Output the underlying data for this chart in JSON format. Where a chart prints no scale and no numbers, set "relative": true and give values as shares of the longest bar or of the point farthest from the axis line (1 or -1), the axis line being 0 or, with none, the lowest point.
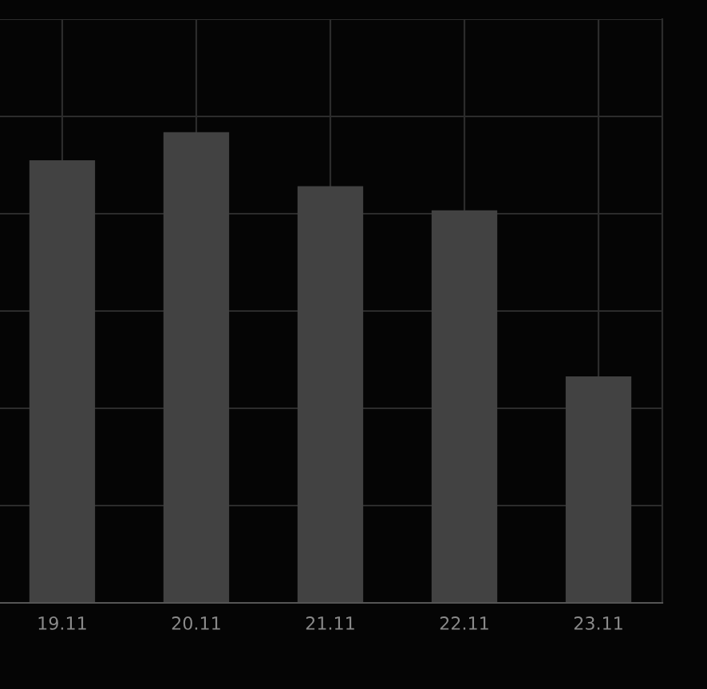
{
  "chart_data": {
    "type": "bar",
    "relative": true,
    "categories": [
      "19.11",
      "20.11",
      "21.11",
      "22.11",
      "23.11"
    ],
    "values": [
      0.94,
      1,
      0.885,
      0.834,
      0.481
    ],
    "color": "#424242",
    "grid": true
  }
}
